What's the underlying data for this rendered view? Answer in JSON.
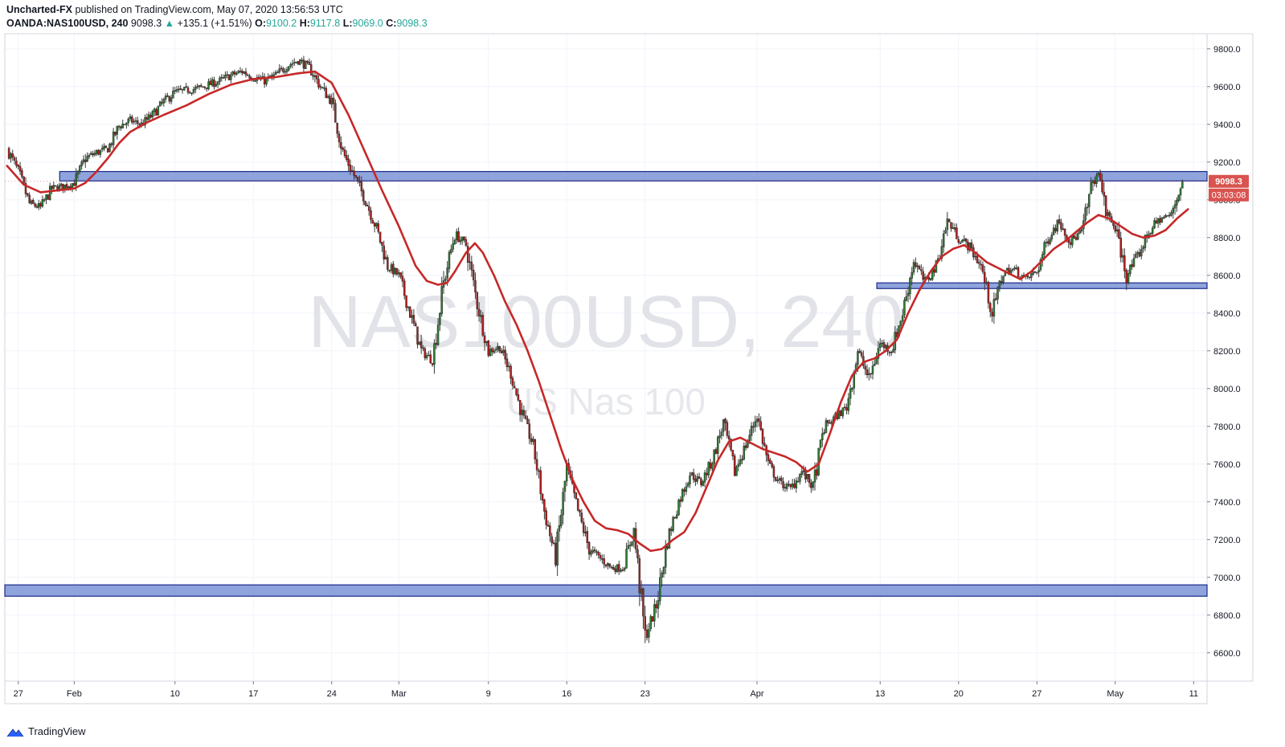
{
  "header": {
    "author": "Uncharted-FX",
    "published_text": "published on TradingView.com, May 07, 2020 13:56:53 UTC",
    "symbol": "OANDA:NAS100USD, 240",
    "last": "9098.3",
    "change_arrow": "▲",
    "change": "+135.1 (+1.51%)",
    "o_label": "O:",
    "o_value": "9100.2",
    "h_label": "H:",
    "h_value": "9117.8",
    "l_label": "L:",
    "l_value": "9069.0",
    "c_label": "C:",
    "c_value": "9098.3"
  },
  "watermark": {
    "line1": "NAS100USD, 240",
    "line2": "US Nas 100"
  },
  "price_label": {
    "value": "9098.3",
    "timer": "03:03:08"
  },
  "footer": {
    "brand": "TradingView"
  },
  "colors": {
    "up": "#26a69a",
    "down": "#ef5350",
    "candle_up": "#2e7d32",
    "candle_down": "#b71c1c",
    "ma": "#c62828",
    "zone_fill": "#7b93d6",
    "zone_border": "#1a2a8a",
    "grid": "#f0f3fa",
    "price_tag": "#d9534f"
  },
  "chart_data": {
    "type": "candlestick",
    "symbol": "NAS100USD",
    "timeframe": "240",
    "ylim": [
      6450,
      9880
    ],
    "y_ticks": [
      6600,
      6800,
      7000,
      7200,
      7400,
      7600,
      7800,
      8000,
      8200,
      8400,
      8600,
      8800,
      9000,
      9200,
      9400,
      9600,
      9800
    ],
    "x_ticks": [
      "27",
      "Feb",
      "10",
      "17",
      "24",
      "Mar",
      "9",
      "16",
      "23",
      "Apr",
      "13",
      "20",
      "27",
      "May",
      "11"
    ],
    "x_tick_days": [
      0,
      5,
      14,
      21,
      28,
      34,
      42,
      49,
      56,
      66,
      77,
      84,
      91,
      98,
      105
    ],
    "x_range_days": [
      -1.2,
      106.2
    ],
    "close_path": [
      [
        -1.0,
        9270
      ],
      [
        0.0,
        9150
      ],
      [
        1.0,
        8980
      ],
      [
        2.0,
        8960
      ],
      [
        3.0,
        9060
      ],
      [
        4.0,
        9070
      ],
      [
        5.0,
        9090
      ],
      [
        6.0,
        9220
      ],
      [
        7.0,
        9250
      ],
      [
        8.0,
        9270
      ],
      [
        9.0,
        9390
      ],
      [
        10.0,
        9420
      ],
      [
        11.0,
        9400
      ],
      [
        12.0,
        9450
      ],
      [
        13.0,
        9520
      ],
      [
        14.0,
        9570
      ],
      [
        15.0,
        9580
      ],
      [
        16.0,
        9590
      ],
      [
        17.0,
        9610
      ],
      [
        18.0,
        9630
      ],
      [
        19.0,
        9660
      ],
      [
        20.0,
        9680
      ],
      [
        21.0,
        9650
      ],
      [
        22.0,
        9630
      ],
      [
        23.0,
        9660
      ],
      [
        24.0,
        9710
      ],
      [
        25.0,
        9740
      ],
      [
        26.0,
        9700
      ],
      [
        27.0,
        9600
      ],
      [
        28.0,
        9520
      ],
      [
        29.0,
        9250
      ],
      [
        30.0,
        9130
      ],
      [
        31.0,
        9000
      ],
      [
        32.0,
        8850
      ],
      [
        33.0,
        8650
      ],
      [
        34.0,
        8600
      ],
      [
        35.0,
        8400
      ],
      [
        36.0,
        8200
      ],
      [
        37.0,
        8150
      ],
      [
        38.0,
        8560
      ],
      [
        39.0,
        8820
      ],
      [
        40.0,
        8760
      ],
      [
        41.0,
        8450
      ],
      [
        42.0,
        8200
      ],
      [
        43.0,
        8220
      ],
      [
        44.0,
        8080
      ],
      [
        45.0,
        7860
      ],
      [
        46.0,
        7700
      ],
      [
        47.0,
        7350
      ],
      [
        48.0,
        7100
      ],
      [
        49.0,
        7580
      ],
      [
        50.0,
        7350
      ],
      [
        51.0,
        7150
      ],
      [
        52.0,
        7100
      ],
      [
        53.0,
        7050
      ],
      [
        54.0,
        7050
      ],
      [
        55.0,
        7250
      ],
      [
        56.0,
        6680
      ],
      [
        57.0,
        6850
      ],
      [
        58.0,
        7200
      ],
      [
        59.0,
        7400
      ],
      [
        60.0,
        7550
      ],
      [
        61.0,
        7500
      ],
      [
        62.0,
        7620
      ],
      [
        63.0,
        7820
      ],
      [
        64.0,
        7560
      ],
      [
        65.0,
        7700
      ],
      [
        66.0,
        7860
      ],
      [
        67.0,
        7600
      ],
      [
        68.0,
        7500
      ],
      [
        69.0,
        7470
      ],
      [
        70.0,
        7560
      ],
      [
        71.0,
        7480
      ],
      [
        72.0,
        7800
      ],
      [
        73.0,
        7850
      ],
      [
        74.0,
        7900
      ],
      [
        75.0,
        8200
      ],
      [
        76.0,
        8050
      ],
      [
        77.0,
        8240
      ],
      [
        78.0,
        8200
      ],
      [
        79.0,
        8400
      ],
      [
        80.0,
        8680
      ],
      [
        81.0,
        8560
      ],
      [
        82.0,
        8650
      ],
      [
        83.0,
        8890
      ],
      [
        84.0,
        8800
      ],
      [
        85.0,
        8750
      ],
      [
        86.0,
        8650
      ],
      [
        87.0,
        8400
      ],
      [
        88.0,
        8620
      ],
      [
        89.0,
        8630
      ],
      [
        90.0,
        8580
      ],
      [
        91.0,
        8620
      ],
      [
        92.0,
        8800
      ],
      [
        93.0,
        8890
      ],
      [
        94.0,
        8780
      ],
      [
        95.0,
        8830
      ],
      [
        96.0,
        9100
      ],
      [
        96.7,
        9130
      ],
      [
        97.0,
        8950
      ],
      [
        98.0,
        8850
      ],
      [
        99.0,
        8600
      ],
      [
        100.0,
        8700
      ],
      [
        101.0,
        8830
      ],
      [
        102.0,
        8900
      ],
      [
        103.0,
        8920
      ],
      [
        104.0,
        9098
      ]
    ],
    "moving_average": {
      "points": [
        [
          -1.0,
          9180
        ],
        [
          0.5,
          9080
        ],
        [
          2.0,
          9040
        ],
        [
          3.5,
          9050
        ],
        [
          5.0,
          9060
        ],
        [
          6.0,
          9090
        ],
        [
          7.0,
          9150
        ],
        [
          8.0,
          9220
        ],
        [
          9.0,
          9300
        ],
        [
          10.0,
          9360
        ],
        [
          11.5,
          9410
        ],
        [
          13.0,
          9450
        ],
        [
          15.0,
          9500
        ],
        [
          17.0,
          9560
        ],
        [
          19.0,
          9610
        ],
        [
          21.0,
          9640
        ],
        [
          23.0,
          9650
        ],
        [
          25.0,
          9670
        ],
        [
          26.5,
          9680
        ],
        [
          28.0,
          9620
        ],
        [
          29.5,
          9450
        ],
        [
          31.0,
          9250
        ],
        [
          32.5,
          9050
        ],
        [
          34.0,
          8860
        ],
        [
          35.5,
          8650
        ],
        [
          36.5,
          8570
        ],
        [
          37.5,
          8550
        ],
        [
          38.3,
          8560
        ],
        [
          39.0,
          8620
        ],
        [
          40.0,
          8720
        ],
        [
          40.8,
          8770
        ],
        [
          41.5,
          8720
        ],
        [
          42.5,
          8600
        ],
        [
          43.5,
          8460
        ],
        [
          44.5,
          8340
        ],
        [
          45.5,
          8200
        ],
        [
          46.5,
          8040
        ],
        [
          47.5,
          7860
        ],
        [
          48.5,
          7680
        ],
        [
          49.5,
          7520
        ],
        [
          50.5,
          7400
        ],
        [
          51.5,
          7300
        ],
        [
          52.5,
          7260
        ],
        [
          53.5,
          7250
        ],
        [
          54.5,
          7230
        ],
        [
          55.5,
          7180
        ],
        [
          56.5,
          7140
        ],
        [
          57.5,
          7150
        ],
        [
          58.5,
          7200
        ],
        [
          59.5,
          7240
        ],
        [
          60.5,
          7340
        ],
        [
          61.5,
          7480
        ],
        [
          62.5,
          7620
        ],
        [
          63.5,
          7720
        ],
        [
          64.5,
          7740
        ],
        [
          65.5,
          7710
        ],
        [
          66.5,
          7680
        ],
        [
          67.5,
          7660
        ],
        [
          68.5,
          7640
        ],
        [
          69.5,
          7610
        ],
        [
          70.5,
          7560
        ],
        [
          71.5,
          7600
        ],
        [
          72.5,
          7760
        ],
        [
          73.5,
          7930
        ],
        [
          74.5,
          8070
        ],
        [
          75.5,
          8140
        ],
        [
          76.5,
          8160
        ],
        [
          77.5,
          8200
        ],
        [
          78.5,
          8260
        ],
        [
          79.5,
          8400
        ],
        [
          80.5,
          8520
        ],
        [
          81.5,
          8620
        ],
        [
          82.5,
          8700
        ],
        [
          83.5,
          8740
        ],
        [
          84.5,
          8760
        ],
        [
          85.5,
          8720
        ],
        [
          86.5,
          8670
        ],
        [
          87.5,
          8640
        ],
        [
          88.5,
          8610
        ],
        [
          89.5,
          8580
        ],
        [
          90.5,
          8620
        ],
        [
          91.5,
          8680
        ],
        [
          92.5,
          8740
        ],
        [
          93.5,
          8780
        ],
        [
          94.5,
          8830
        ],
        [
          95.5,
          8880
        ],
        [
          96.5,
          8920
        ],
        [
          97.5,
          8900
        ],
        [
          98.5,
          8860
        ],
        [
          99.5,
          8820
        ],
        [
          100.5,
          8800
        ],
        [
          101.5,
          8810
        ],
        [
          102.5,
          8840
        ],
        [
          103.5,
          8900
        ],
        [
          104.5,
          8950
        ]
      ]
    },
    "zones": [
      {
        "low": 9100,
        "high": 9150,
        "from_day": 3.7,
        "to_day": 106.2
      },
      {
        "low": 8530,
        "high": 8560,
        "from_day": 76.7,
        "to_day": 106.2
      },
      {
        "low": 6900,
        "high": 6960,
        "from_day": -1.2,
        "to_day": 106.2
      }
    ],
    "last_price": 9098.3,
    "grid": true
  }
}
